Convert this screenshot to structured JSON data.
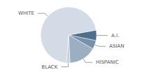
{
  "chart_data": {
    "type": "pie",
    "categories": [
      "A.I.",
      "ASIAN",
      "HISPANIC",
      "BLACK",
      "WHITE"
    ],
    "values": [
      6,
      5,
      16,
      2,
      71
    ],
    "colors": [
      "#4f6d8c",
      "#7891aa",
      "#9cafc2",
      "#c5d1dd",
      "#d3dce6"
    ],
    "data_labels": false
  }
}
